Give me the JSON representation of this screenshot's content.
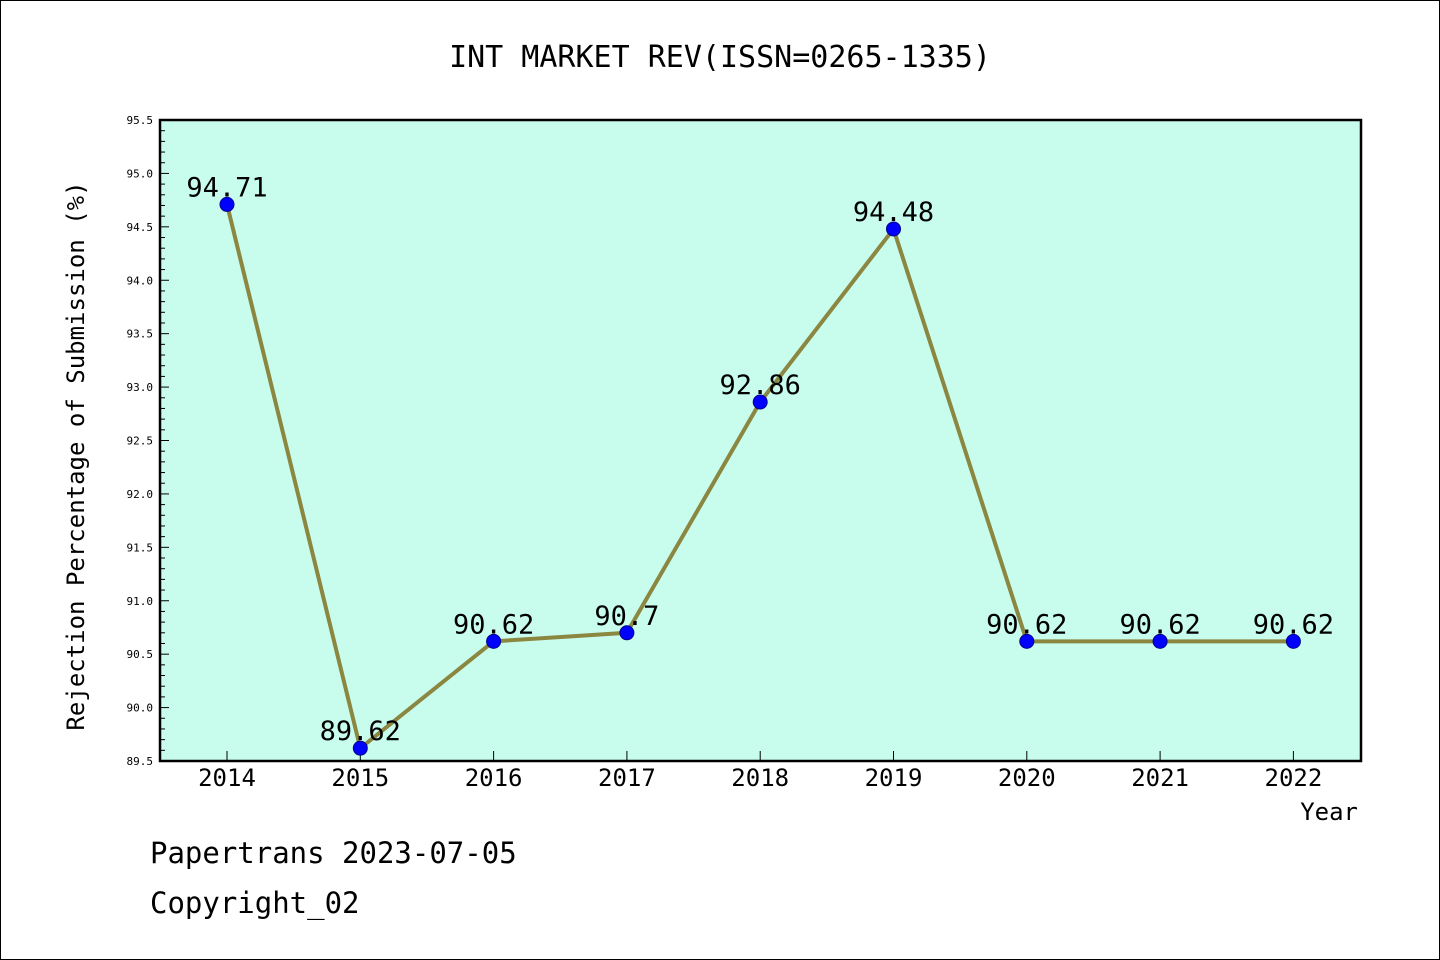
{
  "chart_data": {
    "type": "line",
    "title": "INT MARKET REV(ISSN=0265-1335)",
    "xlabel": "Year",
    "ylabel": "Rejection Percentage of Submission (%)",
    "categories": [
      "2014",
      "2015",
      "2016",
      "2017",
      "2018",
      "2019",
      "2020",
      "2021",
      "2022"
    ],
    "values": [
      94.71,
      89.62,
      90.62,
      90.7,
      92.86,
      94.48,
      90.62,
      90.62,
      90.62
    ],
    "data_labels": [
      "94.71",
      "89.62",
      "90.62",
      "90.7",
      "92.86",
      "94.48",
      "90.62",
      "90.62",
      "90.62"
    ],
    "ylim": [
      89.5,
      95.5
    ],
    "yticks": [
      "89.5",
      "90.0",
      "90.5",
      "91.0",
      "91.5",
      "92.0",
      "92.5",
      "93.0",
      "93.5",
      "94.0",
      "94.5",
      "95.0",
      "95.5"
    ],
    "grid": false,
    "plot_background": "#c8fdee",
    "line_color": "#8b8640",
    "marker_color": "#0000ff"
  },
  "footer": {
    "line1": "Papertrans 2023-07-05",
    "line2": "Copyright_02"
  }
}
